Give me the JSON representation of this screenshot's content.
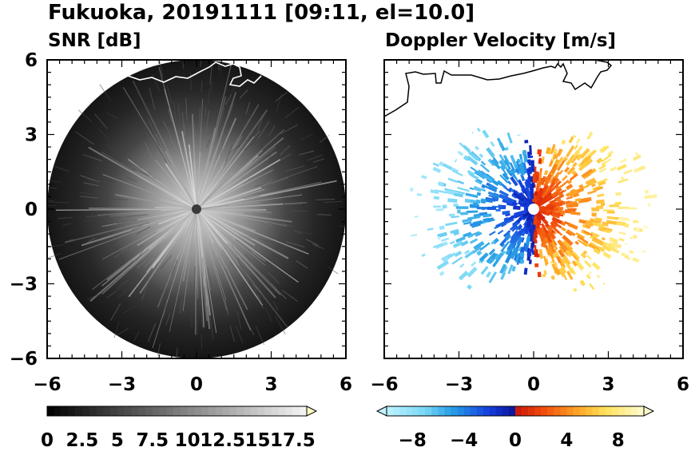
{
  "title": "Fukuoka, 20191111 [09:11, el=10.0]",
  "chart_data": [
    {
      "type": "heatmap",
      "title": "SNR [dB]",
      "grid": false,
      "xlim": [
        -6,
        6
      ],
      "ylim": [
        -6,
        6
      ],
      "x_ticks": [
        "-6",
        "-3",
        "0",
        "3",
        "6"
      ],
      "y_ticks": [
        "6",
        "3",
        "0",
        "-3",
        "-6"
      ],
      "colorbar": {
        "min": 0,
        "max": 18.5,
        "extend": "max",
        "colormap": "gray",
        "tick_values": [
          0,
          2.5,
          5,
          7.5,
          10,
          12.5,
          15,
          17.5
        ],
        "tick_labels": [
          "0",
          "2.5",
          "5",
          "7.5",
          "10",
          "12.5",
          "15",
          "17.5"
        ]
      },
      "colors": {
        "low": "#000000",
        "high": "#ffffff",
        "coastline": "#ffffff"
      }
    },
    {
      "type": "heatmap",
      "title": "Doppler Velocity [m/s]",
      "grid": false,
      "xlim": [
        -6,
        6
      ],
      "ylim": [
        -6,
        6
      ],
      "x_ticks": [
        "-6",
        "-3",
        "0",
        "3",
        "6"
      ],
      "y_ticks": [],
      "colorbar": {
        "min": -10,
        "max": 10,
        "extend": "both",
        "colormap": "diverging cyan-blue-red-yellow",
        "tick_values": [
          -8,
          -4,
          0,
          4,
          8
        ],
        "tick_labels": [
          "−8",
          "−4",
          "0",
          "4",
          "8"
        ]
      },
      "colors": {
        "negative": "#0a2fd6",
        "negative_light": "#bff2ff",
        "positive": "#e8260a",
        "positive_light": "#fffcd0",
        "coastline": "#000000"
      }
    }
  ]
}
